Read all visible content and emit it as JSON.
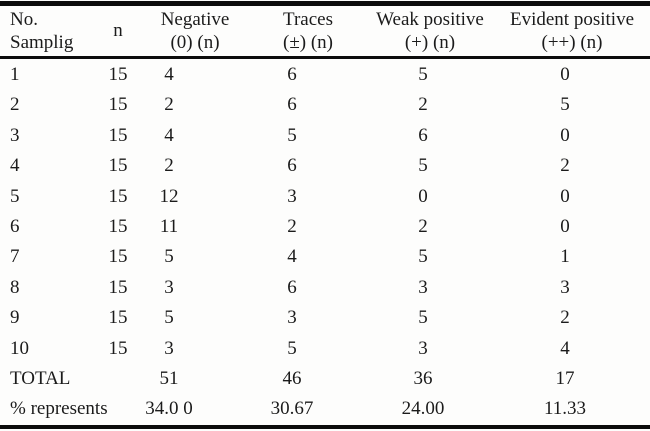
{
  "meta": {
    "background_color": "#fdfdfc",
    "text_color": "#1b1b1b",
    "rule_color": "#0c0c0c"
  },
  "table": {
    "header": {
      "sample_line1": "No.",
      "sample_line2": "Samplig",
      "n": "n",
      "negative_line1": "Negative",
      "negative_line2": "(0) (n)",
      "traces_line1": "Traces",
      "traces_line2": "(±) (n)",
      "weak_line1": "Weak positive",
      "weak_line2": "(+) (n)",
      "evident_line1": "Evident positive",
      "evident_line2": "(++) (n)"
    },
    "rows": [
      {
        "label": "1",
        "n": "15",
        "negative": "4",
        "traces": "6",
        "weak": "5",
        "evident": "0"
      },
      {
        "label": "2",
        "n": "15",
        "negative": "2",
        "traces": "6",
        "weak": "2",
        "evident": "5"
      },
      {
        "label": "3",
        "n": "15",
        "negative": "4",
        "traces": "5",
        "weak": "6",
        "evident": "0"
      },
      {
        "label": "4",
        "n": "15",
        "negative": "2",
        "traces": "6",
        "weak": "5",
        "evident": "2"
      },
      {
        "label": "5",
        "n": "15",
        "negative": "12",
        "traces": "3",
        "weak": "0",
        "evident": "0"
      },
      {
        "label": "6",
        "n": "15",
        "negative": "11",
        "traces": "2",
        "weak": "2",
        "evident": "0"
      },
      {
        "label": "7",
        "n": "15",
        "negative": "5",
        "traces": "4",
        "weak": "5",
        "evident": "1"
      },
      {
        "label": "8",
        "n": "15",
        "negative": "3",
        "traces": "6",
        "weak": "3",
        "evident": "3"
      },
      {
        "label": "9",
        "n": "15",
        "negative": "5",
        "traces": "3",
        "weak": "5",
        "evident": "2"
      },
      {
        "label": "10",
        "n": "15",
        "negative": "3",
        "traces": "5",
        "weak": "3",
        "evident": "4"
      },
      {
        "label": "TOTAL",
        "n": "",
        "negative": "51",
        "traces": "46",
        "weak": "36",
        "evident": "17"
      },
      {
        "label": "% represents",
        "n": "",
        "negative": "34.0 0",
        "traces": "30.67",
        "weak": "24.00",
        "evident": "11.33"
      }
    ]
  }
}
